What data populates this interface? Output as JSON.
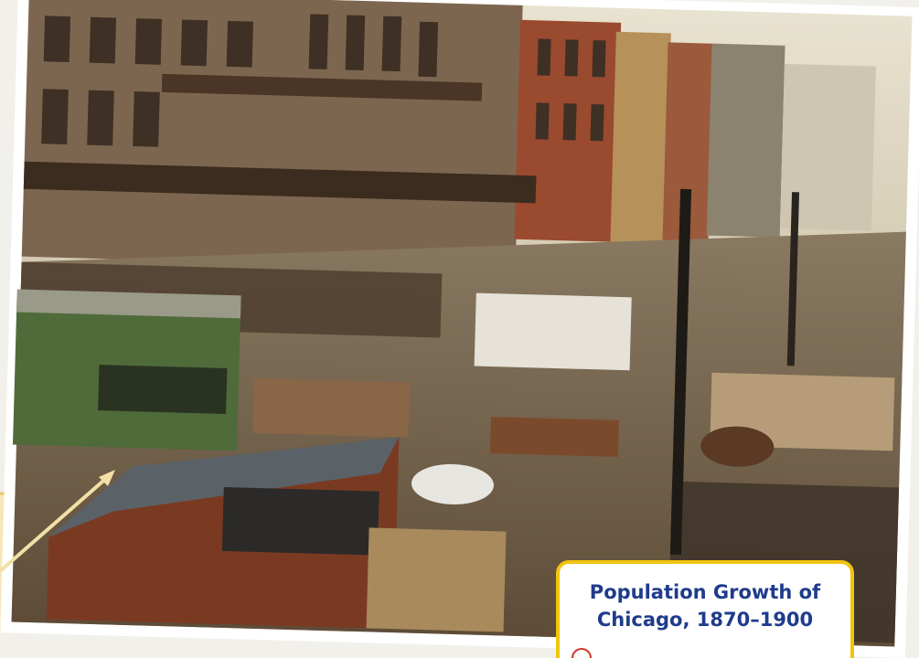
{
  "caption": {
    "title_lines": [
      "Population Growth of",
      "Chicago, 1870–1900"
    ]
  }
}
